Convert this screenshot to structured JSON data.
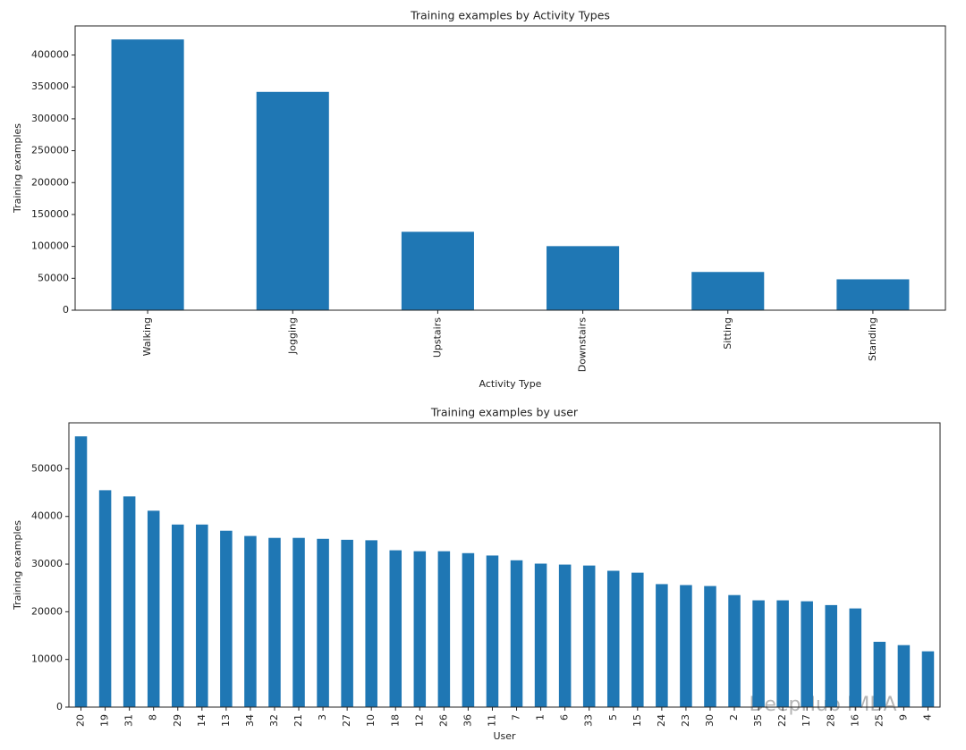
{
  "chart_data": [
    {
      "type": "bar",
      "title": "Training examples by Activity Types",
      "x_label": "Activity Type",
      "y_label": "Training examples",
      "categories": [
        "Walking",
        "Jogging",
        "Upstairs",
        "Downstairs",
        "Sitting",
        "Standing"
      ],
      "values": [
        424400,
        342200,
        122900,
        100400,
        59900,
        48400
      ],
      "color": "#1f77b4",
      "ylim": [
        0,
        445600
      ],
      "yticks": [
        0,
        50000,
        100000,
        150000,
        200000,
        250000,
        300000,
        350000,
        400000
      ],
      "grid": false
    },
    {
      "type": "bar",
      "title": "Training examples by user",
      "x_label": "User",
      "y_label": "Training examples",
      "categories": [
        "20",
        "19",
        "31",
        "8",
        "29",
        "14",
        "13",
        "34",
        "32",
        "21",
        "3",
        "27",
        "10",
        "18",
        "12",
        "26",
        "36",
        "11",
        "7",
        "1",
        "6",
        "33",
        "5",
        "15",
        "24",
        "23",
        "30",
        "2",
        "35",
        "22",
        "17",
        "28",
        "16",
        "25",
        "9",
        "4"
      ],
      "values": [
        56800,
        45500,
        44200,
        41200,
        38300,
        38300,
        37000,
        35900,
        35500,
        35500,
        35300,
        35100,
        35000,
        32900,
        32700,
        32700,
        32300,
        31800,
        30800,
        30100,
        29900,
        29700,
        28600,
        28200,
        25800,
        25600,
        25400,
        23500,
        22400,
        22400,
        22200,
        21400,
        20700,
        13700,
        13000,
        11700
      ],
      "color": "#1f77b4",
      "ylim": [
        0,
        59640
      ],
      "yticks": [
        0,
        10000,
        20000,
        30000,
        40000,
        50000
      ],
      "grid": false
    }
  ],
  "watermark": "DeepHub IMBA"
}
